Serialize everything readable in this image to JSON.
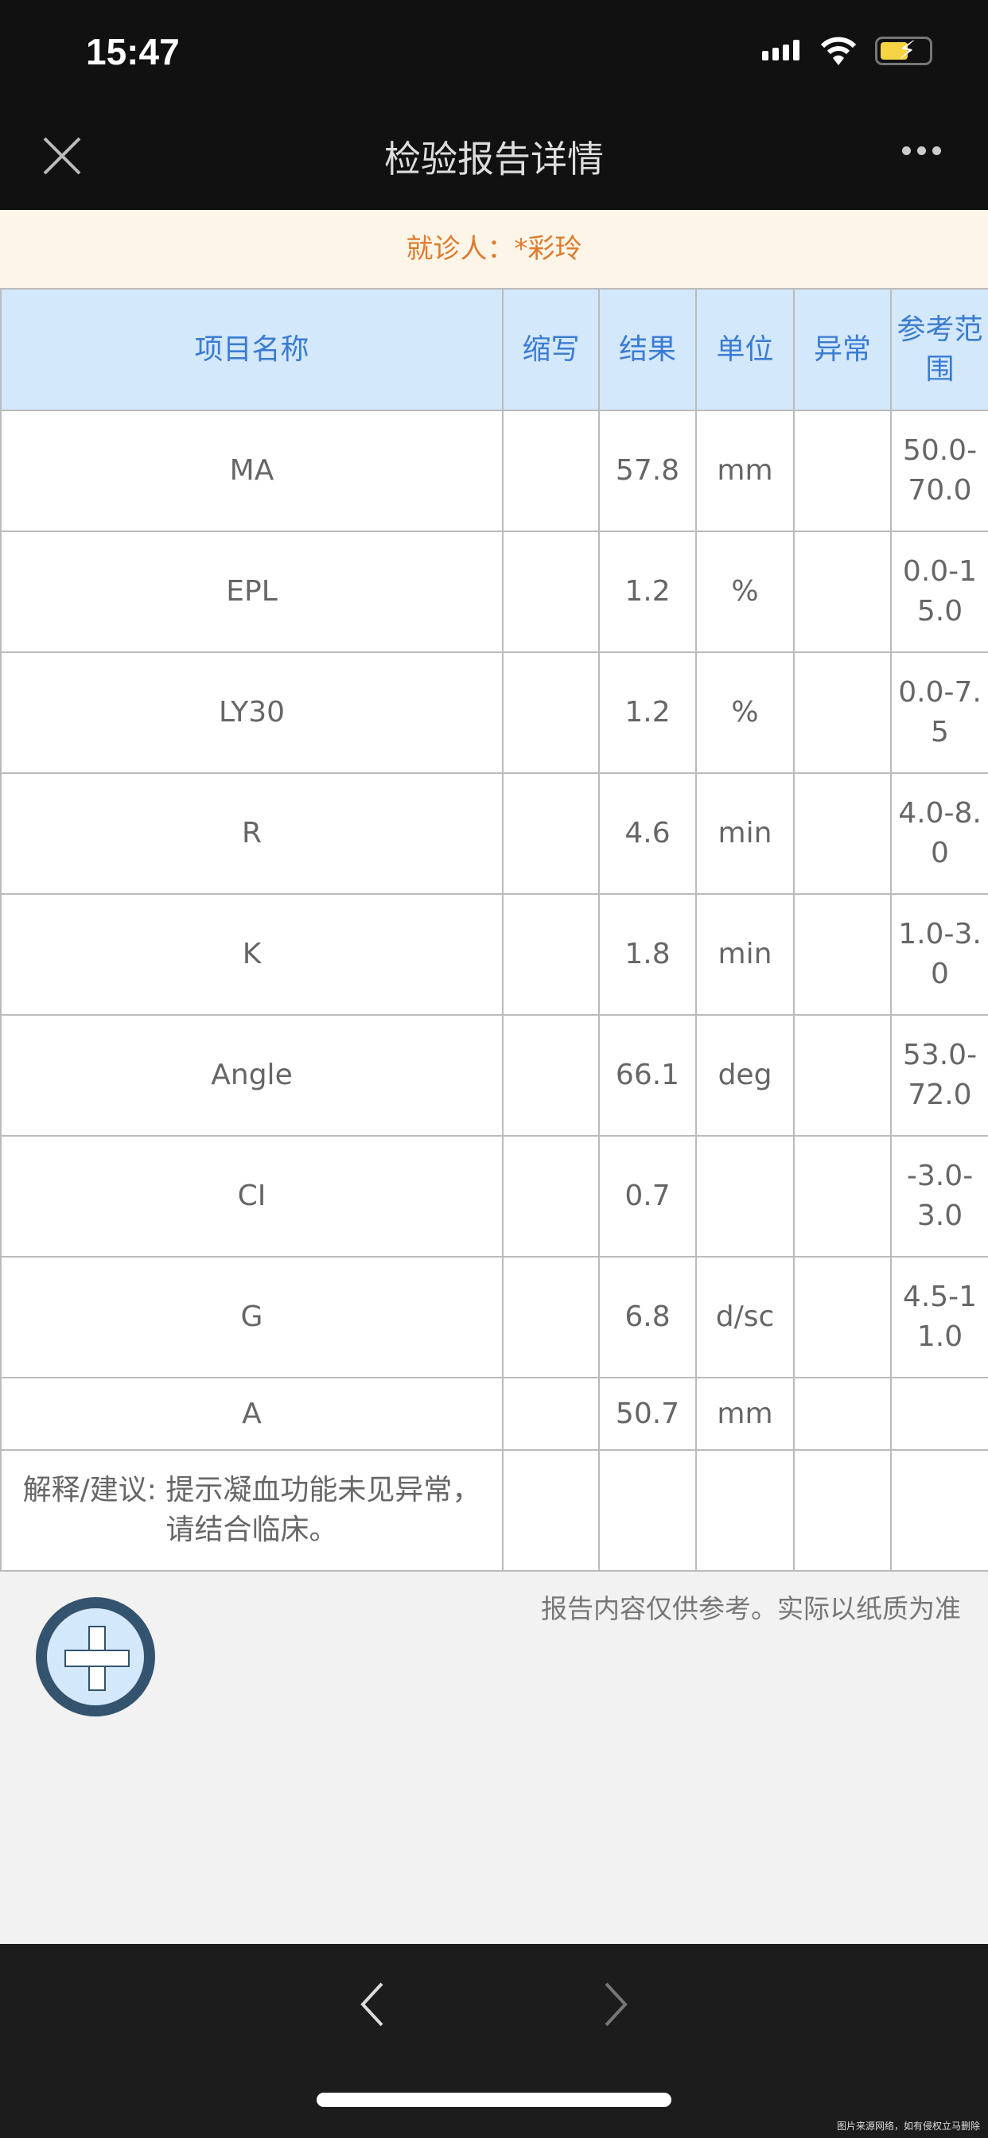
{
  "status_bar": {
    "time": "15:47"
  },
  "nav": {
    "title": "检验报告详情",
    "close_icon": "close-icon",
    "more_icon": "more-icon"
  },
  "patient": {
    "label": "就诊人：*彩玲"
  },
  "table": {
    "headers": [
      "项目名称",
      "缩写",
      "结果",
      "单位",
      "异常",
      "参考范围"
    ],
    "rows": [
      {
        "name": "MA",
        "abbr": "",
        "result": "57.8",
        "unit": "mm",
        "abnormal": "",
        "range": "50.0-70.0"
      },
      {
        "name": "EPL",
        "abbr": "",
        "result": "1.2",
        "unit": "%",
        "abnormal": "",
        "range": "0.0-15.0"
      },
      {
        "name": "LY30",
        "abbr": "",
        "result": "1.2",
        "unit": "%",
        "abnormal": "",
        "range": "0.0-7.5"
      },
      {
        "name": "R",
        "abbr": "",
        "result": "4.6",
        "unit": "min",
        "abnormal": "",
        "range": "4.0-8.0"
      },
      {
        "name": "K",
        "abbr": "",
        "result": "1.8",
        "unit": "min",
        "abnormal": "",
        "range": "1.0-3.0"
      },
      {
        "name": "Angle",
        "abbr": "",
        "result": "66.1",
        "unit": "deg",
        "abnormal": "",
        "range": "53.0-72.0"
      },
      {
        "name": "CI",
        "abbr": "",
        "result": "0.7",
        "unit": "",
        "abnormal": "",
        "range": "-3.0-3.0"
      },
      {
        "name": "G",
        "abbr": "",
        "result": "6.8",
        "unit": "d/sc",
        "abnormal": "",
        "range": "4.5-11.0"
      },
      {
        "name": "A",
        "abbr": "",
        "result": "50.7",
        "unit": "mm",
        "abnormal": "",
        "range": ""
      }
    ],
    "comment": "解释/建议: 提示凝血功能未见异常，请结合临床。"
  },
  "disclaimer": "报告内容仅供参考。实际以纸质为准",
  "fab_icon": "plus-icon",
  "bottom": {
    "back_icon": "chevron-left-icon",
    "forward_icon": "chevron-right-icon"
  },
  "watermark": "图片来源网络，如有侵权立马删除",
  "colors": {
    "header_bg": "#d4e8fb",
    "header_text": "#3a7cd1",
    "patient_text": "#e07a2c",
    "patient_bg": "#fdf6e8"
  }
}
